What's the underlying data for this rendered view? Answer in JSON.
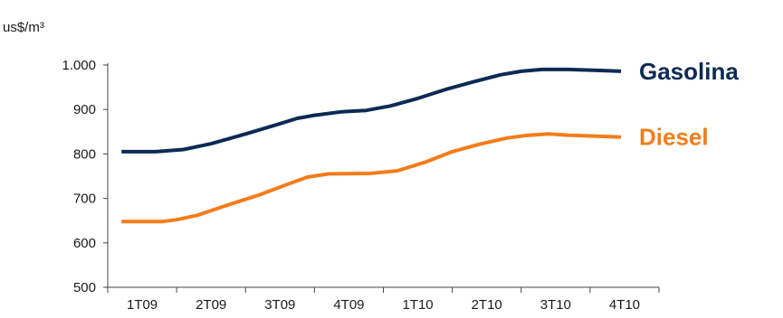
{
  "chart_data": {
    "type": "line",
    "unit_label": "us$/m³",
    "categories": [
      "1T09",
      "2T09",
      "3T09",
      "4T09",
      "1T10",
      "2T10",
      "3T10",
      "4T10"
    ],
    "ylim": [
      500,
      1000
    ],
    "y_ticks": [
      "500",
      "600",
      "700",
      "800",
      "900",
      "1.000"
    ],
    "x_range": [
      0.0,
      8.0
    ],
    "series": [
      {
        "name": "Gasolina",
        "color": "#0b2a55",
        "points": [
          [
            0.2,
            805
          ],
          [
            0.7,
            805
          ],
          [
            1.1,
            810
          ],
          [
            1.5,
            823
          ],
          [
            2.0,
            845
          ],
          [
            2.5,
            868
          ],
          [
            2.75,
            880
          ],
          [
            3.0,
            887
          ],
          [
            3.4,
            895
          ],
          [
            3.75,
            898
          ],
          [
            4.1,
            908
          ],
          [
            4.5,
            925
          ],
          [
            4.9,
            945
          ],
          [
            5.3,
            962
          ],
          [
            5.7,
            978
          ],
          [
            6.0,
            986
          ],
          [
            6.3,
            990
          ],
          [
            6.7,
            990
          ],
          [
            7.1,
            988
          ],
          [
            7.45,
            986
          ]
        ]
      },
      {
        "name": "Diesel",
        "color": "#f47c1a",
        "points": [
          [
            0.2,
            648
          ],
          [
            0.8,
            648
          ],
          [
            1.0,
            652
          ],
          [
            1.3,
            662
          ],
          [
            1.7,
            683
          ],
          [
            2.2,
            708
          ],
          [
            2.6,
            731
          ],
          [
            2.9,
            748
          ],
          [
            3.2,
            755
          ],
          [
            3.8,
            756
          ],
          [
            4.2,
            762
          ],
          [
            4.6,
            781
          ],
          [
            5.0,
            805
          ],
          [
            5.4,
            822
          ],
          [
            5.8,
            836
          ],
          [
            6.1,
            842
          ],
          [
            6.4,
            845
          ],
          [
            6.7,
            842
          ],
          [
            7.1,
            840
          ],
          [
            7.45,
            838
          ]
        ]
      }
    ]
  }
}
